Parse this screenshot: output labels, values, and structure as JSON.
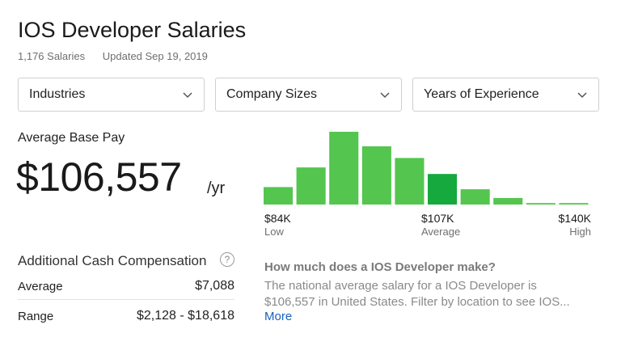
{
  "header": {
    "title": "IOS Developer Salaries",
    "salary_count": "1,176 Salaries",
    "updated": "Updated Sep 19, 2019"
  },
  "filters": [
    {
      "label": "Industries"
    },
    {
      "label": "Company Sizes"
    },
    {
      "label": "Years of Experience"
    }
  ],
  "average_base_pay": {
    "label": "Average Base Pay",
    "value": "$106,557",
    "unit": "/yr"
  },
  "distribution": {
    "low": {
      "value": "$84K",
      "label": "Low"
    },
    "average": {
      "value": "$107K",
      "label": "Average"
    },
    "high": {
      "value": "$140K",
      "label": "High"
    },
    "bar_heights_relative": [
      0.24,
      0.51,
      1.0,
      0.8,
      0.64,
      0.42,
      0.21,
      0.09,
      0.02,
      0.02
    ],
    "highlight_index": 5,
    "colors": {
      "bar": "#54c64f",
      "highlight": "#15a93e",
      "baseline": "#54c64f"
    }
  },
  "additional_cash": {
    "title": "Additional Cash Compensation",
    "help_icon": "?",
    "rows": [
      {
        "label": "Average",
        "value": "$7,088"
      },
      {
        "label": "Range",
        "value": "$2,128 - $18,618"
      }
    ]
  },
  "about": {
    "question": "How much does a IOS Developer make?",
    "body_line1": "The national average salary for a IOS Developer is",
    "body_line2": "$106,557 in United States. Filter by location to see IOS...",
    "more_label": "More",
    "link_color": "#1861bf"
  }
}
